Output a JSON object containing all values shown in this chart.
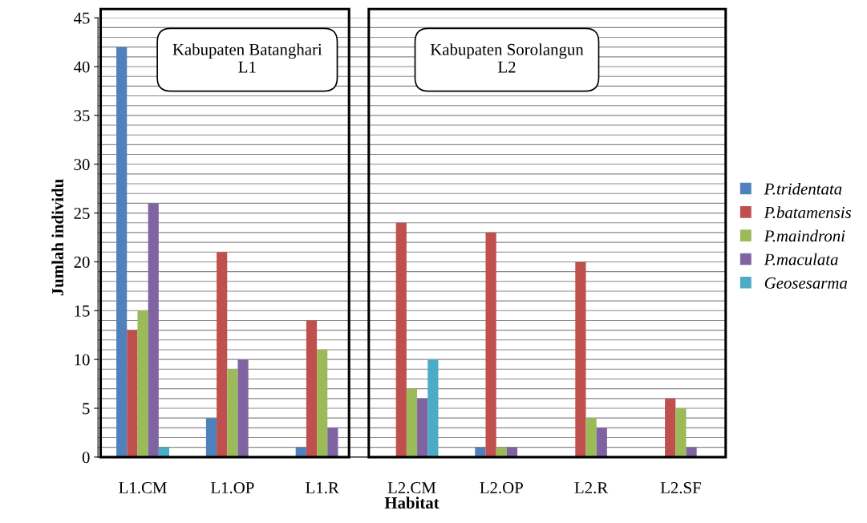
{
  "chart_data": {
    "type": "bar",
    "xlabel": "Habitat",
    "ylabel": "Jumlah individu",
    "categories": [
      "L1.CM",
      "L1.OP",
      "L1.R",
      "L2.CM",
      "L2.OP",
      "L2.R",
      "L2.SF"
    ],
    "series": [
      {
        "name": "P.tridentata",
        "color": "#4f81bd",
        "values": [
          42,
          4,
          1,
          0,
          1,
          0,
          0
        ]
      },
      {
        "name": "P.batamensis",
        "color": "#c0504d",
        "values": [
          13,
          21,
          14,
          24,
          23,
          20,
          6
        ]
      },
      {
        "name": "P.maindroni",
        "color": "#9bbb59",
        "values": [
          15,
          9,
          11,
          7,
          1,
          4,
          5
        ]
      },
      {
        "name": "P.maculata",
        "color": "#8064a2",
        "values": [
          26,
          10,
          3,
          6,
          1,
          3,
          1
        ]
      },
      {
        "name": "Geosesarma",
        "color": "#4bacc6",
        "values": [
          1,
          0,
          0,
          10,
          0,
          0,
          0
        ]
      }
    ],
    "ylim": [
      0,
      45
    ],
    "yticks": [
      0,
      {
        "value": 1,
        "label": null
      },
      {
        "value": 2,
        "label": null
      },
      {
        "value": 3,
        "label": null
      },
      {
        "value": 4,
        "label": null
      },
      5,
      {
        "value": 6,
        "label": null
      },
      {
        "value": 7,
        "label": null
      },
      {
        "value": 8,
        "label": null
      },
      {
        "value": 9,
        "label": null
      },
      10,
      {
        "value": 11,
        "label": null
      },
      {
        "value": 12,
        "label": null
      },
      {
        "value": 13,
        "label": null
      },
      {
        "value": 14,
        "label": null
      },
      15,
      {
        "value": 16,
        "label": null
      },
      {
        "value": 17,
        "label": null
      },
      {
        "value": 18,
        "label": null
      },
      {
        "value": 19,
        "label": null
      },
      20,
      {
        "value": 21,
        "label": null
      },
      {
        "value": 22,
        "label": null
      },
      {
        "value": 23,
        "label": null
      },
      {
        "value": 24,
        "label": null
      },
      25,
      {
        "value": 26,
        "label": null
      },
      {
        "value": 27,
        "label": null
      },
      {
        "value": 28,
        "label": null
      },
      {
        "value": 29,
        "label": null
      },
      30,
      {
        "value": 31,
        "label": null
      },
      {
        "value": 32,
        "label": null
      },
      {
        "value": 33,
        "label": null
      },
      {
        "value": 34,
        "label": null
      },
      35,
      {
        "value": 36,
        "label": null
      },
      {
        "value": 37,
        "label": null
      },
      {
        "value": 38,
        "label": null
      },
      {
        "value": 39,
        "label": null
      },
      40,
      {
        "value": 41,
        "label": null
      },
      {
        "value": 42,
        "label": null
      },
      {
        "value": 43,
        "label": null
      },
      {
        "value": 44,
        "label": null
      },
      45
    ],
    "grid": "y",
    "legend": "right",
    "annotations": [
      "Kabupaten Batanghari\nL1",
      "Kabupaten Sorolangun\nL2"
    ]
  }
}
